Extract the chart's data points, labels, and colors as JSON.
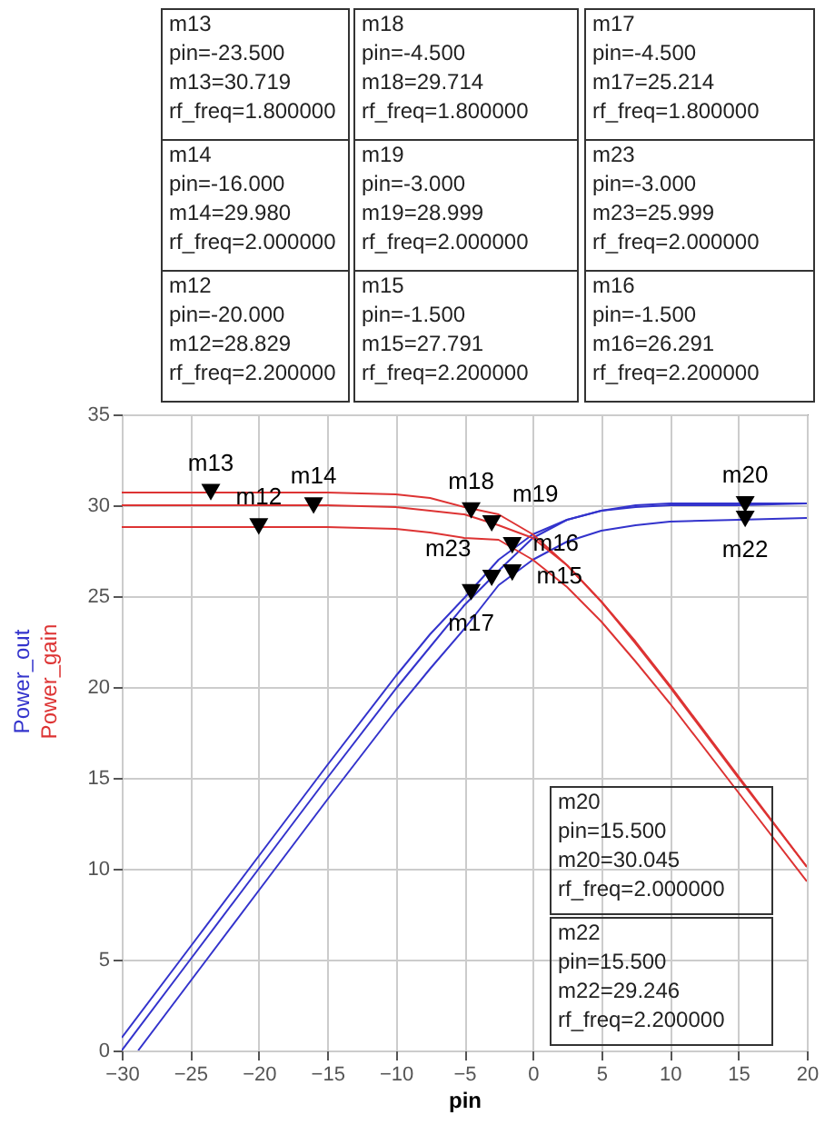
{
  "chart_data": {
    "type": "line",
    "xlabel": "pin",
    "xlim": [
      -30,
      20
    ],
    "ylim": [
      0,
      35
    ],
    "xticks": [
      -30,
      -25,
      -20,
      -15,
      -10,
      -5,
      0,
      5,
      10,
      15,
      20
    ],
    "yticks": [
      0,
      5,
      10,
      15,
      20,
      25,
      30,
      35
    ],
    "grid": true,
    "legend": "left",
    "line_style": "solid",
    "series": [
      {
        "name": "Power_out",
        "color": "#3333cc",
        "x": [
          -30,
          -25,
          -20,
          -15,
          -10,
          -7.5,
          -5,
          -2.5,
          0,
          2.5,
          5,
          7.5,
          10,
          15,
          20
        ],
        "values": [
          0.7,
          5.7,
          10.7,
          15.7,
          20.6,
          22.9,
          24.9,
          27.0,
          28.4,
          29.2,
          29.7,
          30.0,
          30.1,
          30.1,
          30.1
        ]
      },
      {
        "color": "#3333cc",
        "x": [
          -30,
          -25,
          -20,
          -15,
          -10,
          -7.5,
          -5,
          -2.5,
          0,
          2.5,
          5,
          7.5,
          10,
          15,
          20
        ],
        "values": [
          0.0,
          5.0,
          10.0,
          15.0,
          19.9,
          22.2,
          24.5,
          26.4,
          28.2,
          29.2,
          29.7,
          29.9,
          30.0,
          30.0,
          30.1
        ]
      },
      {
        "color": "#3333cc",
        "x": [
          -28.8,
          -25,
          -20,
          -15,
          -10,
          -7.5,
          -5,
          -2.5,
          0,
          2.5,
          5,
          7.5,
          10,
          15,
          20
        ],
        "values": [
          0.0,
          3.8,
          8.8,
          13.8,
          18.7,
          21.0,
          23.2,
          25.6,
          27.0,
          28.0,
          28.6,
          28.9,
          29.1,
          29.2,
          29.3
        ]
      },
      {
        "name": "Power_gain",
        "color": "#dd3333",
        "x": [
          -30,
          -25,
          -20,
          -15,
          -10,
          -7.5,
          -5,
          -2.5,
          0,
          2.5,
          5,
          7.5,
          10,
          15,
          20
        ],
        "values": [
          30.7,
          30.7,
          30.7,
          30.7,
          30.6,
          30.4,
          29.9,
          29.5,
          28.4,
          26.7,
          24.7,
          22.5,
          20.1,
          15.1,
          10.1
        ]
      },
      {
        "color": "#dd3333",
        "x": [
          -30,
          -25,
          -20,
          -15,
          -10,
          -7.5,
          -5,
          -2.5,
          0,
          2.5,
          5,
          7.5,
          10,
          15,
          20
        ],
        "values": [
          30.0,
          30.0,
          30.0,
          30.0,
          29.9,
          29.7,
          29.5,
          28.9,
          28.2,
          26.7,
          24.7,
          22.4,
          20.0,
          15.0,
          10.1
        ]
      },
      {
        "color": "#dd3333",
        "x": [
          -30,
          -25,
          -20,
          -15,
          -10,
          -7.5,
          -5,
          -2.5,
          0,
          2.5,
          5,
          7.5,
          10,
          15,
          20
        ],
        "values": [
          28.8,
          28.8,
          28.8,
          28.8,
          28.7,
          28.5,
          28.2,
          28.1,
          27.0,
          25.5,
          23.6,
          21.4,
          19.1,
          14.2,
          9.3
        ]
      },
      {
        "type": "scatter",
        "marker": "triangle",
        "color": "#000000",
        "x": [
          -23.5,
          -16,
          -20,
          -4.5,
          -3,
          -1.5,
          -4.5,
          -3,
          -1.5,
          15.5,
          15.5
        ],
        "values": [
          30.719,
          29.98,
          28.829,
          29.714,
          28.999,
          27.791,
          25.214,
          25.999,
          26.291,
          30.045,
          29.246
        ]
      }
    ],
    "annotations": [
      {
        "text": "m13",
        "x": -23.5,
        "y": 30.719
      },
      {
        "text": "m14",
        "x": -16,
        "y": 29.98
      },
      {
        "text": "m12",
        "x": -20,
        "y": 28.829
      },
      {
        "text": "m18",
        "x": -4.5,
        "y": 29.714
      },
      {
        "text": "m19",
        "x": -3,
        "y": 28.999
      },
      {
        "text": "m15",
        "x": -1.5,
        "y": 27.791
      },
      {
        "text": "m17",
        "x": -4.5,
        "y": 25.214
      },
      {
        "text": "m23",
        "x": -3,
        "y": 25.999
      },
      {
        "text": "m16",
        "x": -1.5,
        "y": 26.291
      },
      {
        "text": "m20",
        "x": 15.5,
        "y": 30.045
      },
      {
        "text": "m22",
        "x": 15.5,
        "y": 29.246
      },
      "m13\npin=-23.500\nm13=30.719\nrf_freq=1.800000",
      "m18\npin=-4.500\nm18=29.714\nrf_freq=1.800000",
      "m17\npin=-4.500\nm17=25.214\nrf_freq=1.800000",
      "m14\npin=-16.000\nm14=29.980\nrf_freq=2.000000",
      "m19\npin=-3.000\nm19=28.999\nrf_freq=2.000000",
      "m23\npin=-3.000\nm23=25.999\nrf_freq=2.000000",
      "m12\npin=-20.000\nm12=28.829\nrf_freq=2.200000",
      "m15\npin=-1.500\nm15=27.791\nrf_freq=2.200000",
      "m16\npin=-1.500\nm16=26.291\nrf_freq=2.200000",
      "m20\npin=15.500\nm20=30.045\nrf_freq=2.000000",
      "m22\npin=15.500\nm22=29.246\nrf_freq=2.200000"
    ]
  }
}
